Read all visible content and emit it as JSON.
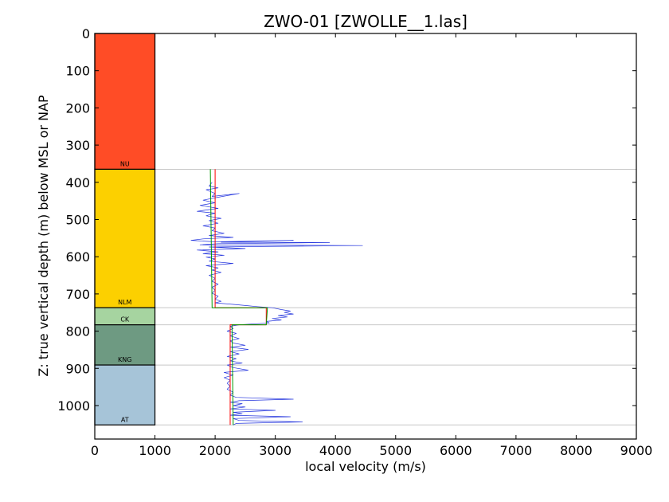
{
  "chart_data": {
    "type": "line",
    "title": "ZWO-01 [ZWOLLE__1.las]",
    "xlabel": "local velocity (m/s)",
    "ylabel": "Z: true vertical depth (m) below MSL or NAP",
    "xlim": [
      0,
      9000
    ],
    "ylim": [
      1090,
      0
    ],
    "y_inverted": true,
    "grid": false,
    "x_ticks": [
      "0",
      "1000",
      "2000",
      "3000",
      "4000",
      "5000",
      "6000",
      "7000",
      "8000",
      "9000"
    ],
    "y_ticks": [
      "0",
      "100",
      "200",
      "300",
      "400",
      "500",
      "600",
      "700",
      "800",
      "900",
      "1000"
    ],
    "formation_column": {
      "x_range": [
        0,
        1000
      ],
      "layers": [
        {
          "name": "NU",
          "top": 0,
          "base": 365,
          "color": "#ff4c26"
        },
        {
          "name": "NLM",
          "top": 365,
          "base": 737,
          "color": "#fcd000"
        },
        {
          "name": "CK",
          "top": 737,
          "base": 783,
          "color": "#a6d4a0"
        },
        {
          "name": "KNG",
          "top": 783,
          "base": 891,
          "color": "#6e9a82"
        },
        {
          "name": "AT",
          "top": 891,
          "base": 1052,
          "color": "#a6c4d8"
        }
      ]
    },
    "horizon_lines": [
      365,
      737,
      783,
      891,
      1052
    ],
    "series": [
      {
        "color": "#2233dd",
        "points": [
          [
            1950,
            400
          ],
          [
            1900,
            410
          ],
          [
            2050,
            415
          ],
          [
            1850,
            420
          ],
          [
            2000,
            430
          ],
          [
            1950,
            438
          ],
          [
            2400,
            430
          ],
          [
            2050,
            440
          ],
          [
            1800,
            448
          ],
          [
            2000,
            455
          ],
          [
            1750,
            462
          ],
          [
            2050,
            470
          ],
          [
            1700,
            478
          ],
          [
            2000,
            483
          ],
          [
            1850,
            490
          ],
          [
            2100,
            497
          ],
          [
            1900,
            503
          ],
          [
            2050,
            510
          ],
          [
            1800,
            517
          ],
          [
            2000,
            523
          ],
          [
            1950,
            530
          ],
          [
            2150,
            537
          ],
          [
            1900,
            543
          ],
          [
            2300,
            548
          ],
          [
            1800,
            552
          ],
          [
            1600,
            556
          ],
          [
            2000,
            560
          ],
          [
            3300,
            556
          ],
          [
            2100,
            561
          ],
          [
            3900,
            562
          ],
          [
            2050,
            565
          ],
          [
            1750,
            568
          ],
          [
            4450,
            570
          ],
          [
            1900,
            574
          ],
          [
            2500,
            578
          ],
          [
            1700,
            582
          ],
          [
            2050,
            587
          ],
          [
            1800,
            592
          ],
          [
            2150,
            596
          ],
          [
            1850,
            601
          ],
          [
            2000,
            606
          ],
          [
            1900,
            612
          ],
          [
            2300,
            618
          ],
          [
            1850,
            624
          ],
          [
            2050,
            630
          ],
          [
            1950,
            636
          ],
          [
            2100,
            642
          ],
          [
            1900,
            650
          ],
          [
            2000,
            658
          ],
          [
            1950,
            666
          ],
          [
            2050,
            674
          ],
          [
            1950,
            682
          ],
          [
            2000,
            690
          ],
          [
            1950,
            698
          ],
          [
            2050,
            706
          ],
          [
            2000,
            714
          ],
          [
            2100,
            720
          ],
          [
            2000,
            724
          ],
          [
            2300,
            728
          ],
          [
            2500,
            731
          ],
          [
            2700,
            734
          ],
          [
            2950,
            737
          ],
          [
            3100,
            742
          ],
          [
            3250,
            746
          ],
          [
            3150,
            750
          ],
          [
            3300,
            754
          ],
          [
            3050,
            758
          ],
          [
            3200,
            762
          ],
          [
            2950,
            766
          ],
          [
            3100,
            770
          ],
          [
            2850,
            774
          ],
          [
            2900,
            778
          ],
          [
            2600,
            781
          ],
          [
            2400,
            783
          ],
          [
            2250,
            787
          ],
          [
            2300,
            793
          ],
          [
            2200,
            800
          ],
          [
            2350,
            806
          ],
          [
            2250,
            813
          ],
          [
            2400,
            820
          ],
          [
            2250,
            826
          ],
          [
            2300,
            832
          ],
          [
            2500,
            838
          ],
          [
            2250,
            843
          ],
          [
            2550,
            849
          ],
          [
            2250,
            855
          ],
          [
            2400,
            861
          ],
          [
            2200,
            868
          ],
          [
            2350,
            874
          ],
          [
            2250,
            880
          ],
          [
            2450,
            886
          ],
          [
            2200,
            891
          ],
          [
            2300,
            898
          ],
          [
            2550,
            905
          ],
          [
            2150,
            911
          ],
          [
            2300,
            918
          ],
          [
            2150,
            925
          ],
          [
            2250,
            932
          ],
          [
            2200,
            940
          ],
          [
            2250,
            948
          ],
          [
            2200,
            956
          ],
          [
            2300,
            964
          ],
          [
            2250,
            972
          ],
          [
            2350,
            978
          ],
          [
            3300,
            983
          ],
          [
            2400,
            987
          ],
          [
            2250,
            991
          ],
          [
            2450,
            995
          ],
          [
            2300,
            1000
          ],
          [
            2500,
            1004
          ],
          [
            2250,
            1009
          ],
          [
            3000,
            1013
          ],
          [
            2300,
            1018
          ],
          [
            2450,
            1022
          ],
          [
            2250,
            1026
          ],
          [
            3250,
            1030
          ],
          [
            2300,
            1035
          ],
          [
            2400,
            1040
          ],
          [
            3450,
            1044
          ],
          [
            2350,
            1048
          ],
          [
            2300,
            1052
          ]
        ]
      },
      {
        "color": "#ff0000",
        "points": [
          [
            2000,
            365
          ],
          [
            2000,
            737
          ],
          [
            2850,
            737
          ],
          [
            2850,
            783
          ],
          [
            2250,
            783
          ],
          [
            2250,
            1052
          ]
        ]
      },
      {
        "color": "#009900",
        "points": [
          [
            1920,
            365
          ],
          [
            1950,
            737
          ],
          [
            2870,
            737
          ],
          [
            2850,
            783
          ],
          [
            2280,
            783
          ],
          [
            2300,
            1052
          ]
        ]
      }
    ]
  }
}
